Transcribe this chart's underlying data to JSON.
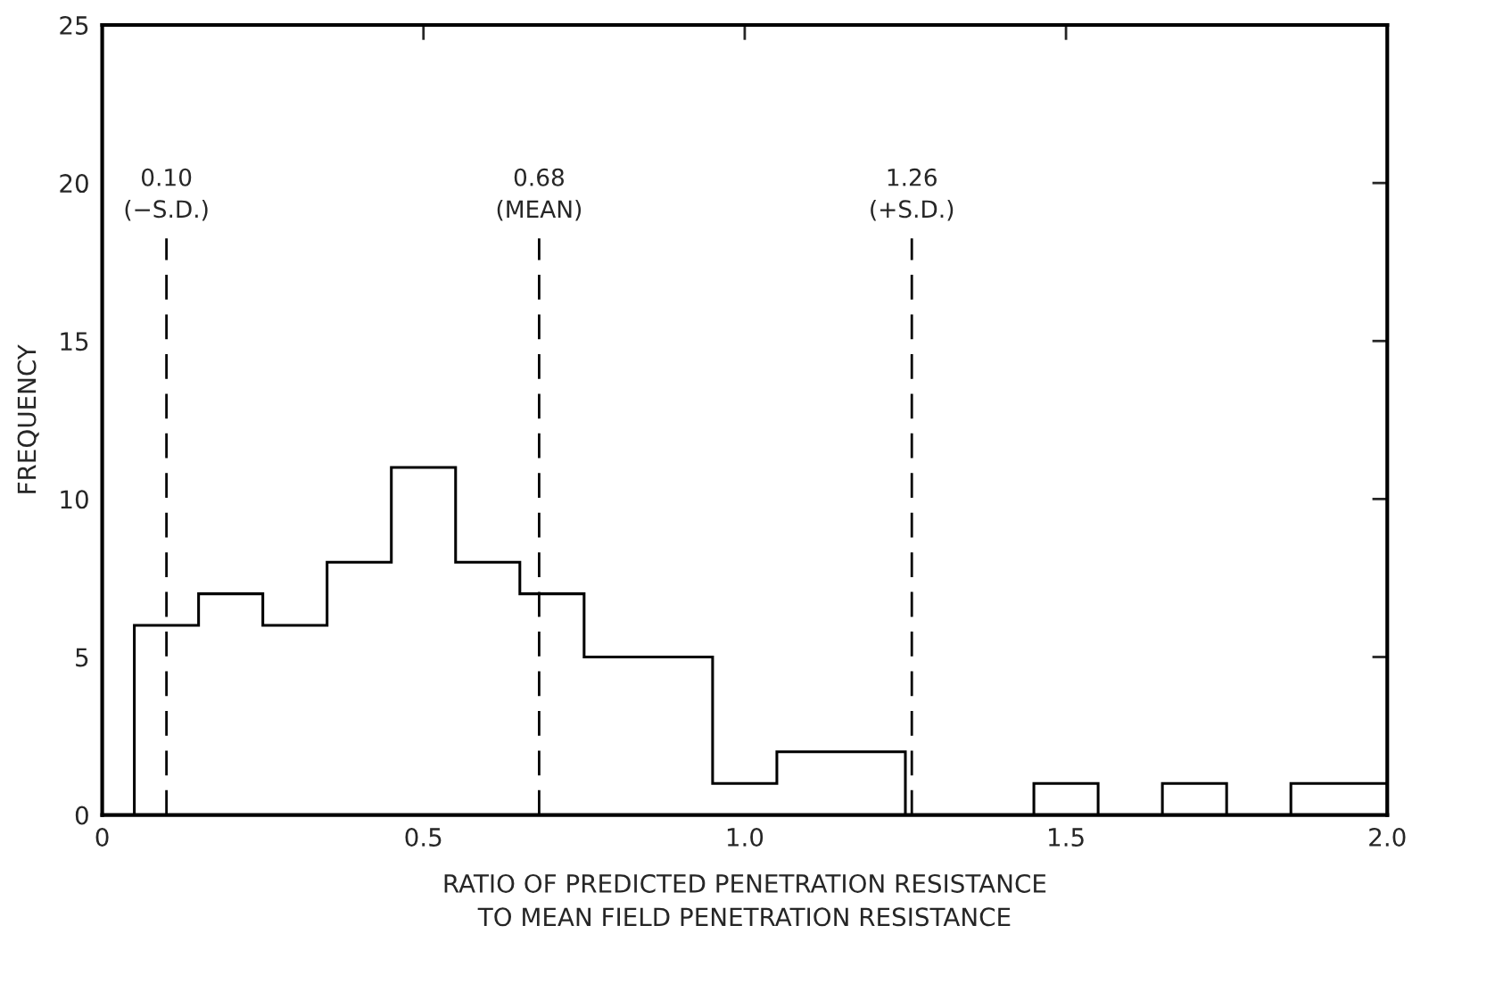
{
  "chart_data": {
    "type": "histogram",
    "xlabel": "RATIO OF PREDICTED PENETRATION RESISTANCE\nTO MEAN FIELD PENETRATION RESISTANCE",
    "ylabel": "FREQUENCY",
    "bins": [
      0.05,
      0.15,
      0.25,
      0.35,
      0.45,
      0.55,
      0.65,
      0.75,
      0.85,
      0.95,
      1.05,
      1.15,
      1.25,
      1.35,
      1.45,
      1.55,
      1.65,
      1.75,
      1.85,
      2.0
    ],
    "values": [
      6,
      7,
      6,
      8,
      11,
      8,
      7,
      5,
      5,
      1,
      2,
      2,
      0,
      0,
      1,
      0,
      1,
      0,
      1
    ],
    "color": "#000000",
    "xlim": [
      0,
      2.0
    ],
    "xticks": [
      0,
      0.5,
      {
        "value": 1.0,
        "label": "1.0"
      },
      {
        "value": 1.5,
        "label": "1.5"
      },
      {
        "value": 2.0,
        "label": "2.0"
      }
    ],
    "ylim": [
      0,
      25
    ],
    "yticks": [
      0,
      5,
      10,
      15,
      20,
      25
    ],
    "ref_lines": [
      {
        "axis": "x",
        "value": 0.1,
        "label": "0.10\n(−S.D.)",
        "line_style": "dashed",
        "color": "#000000"
      },
      {
        "axis": "x",
        "value": 0.68,
        "label": "0.68\n(MEAN)",
        "line_style": "dashed",
        "color": "#000000"
      },
      {
        "axis": "x",
        "value": 1.26,
        "label": "1.26\n(+S.D.)",
        "line_style": "dashed",
        "color": "#000000"
      }
    ],
    "grid": false,
    "legend": false
  }
}
